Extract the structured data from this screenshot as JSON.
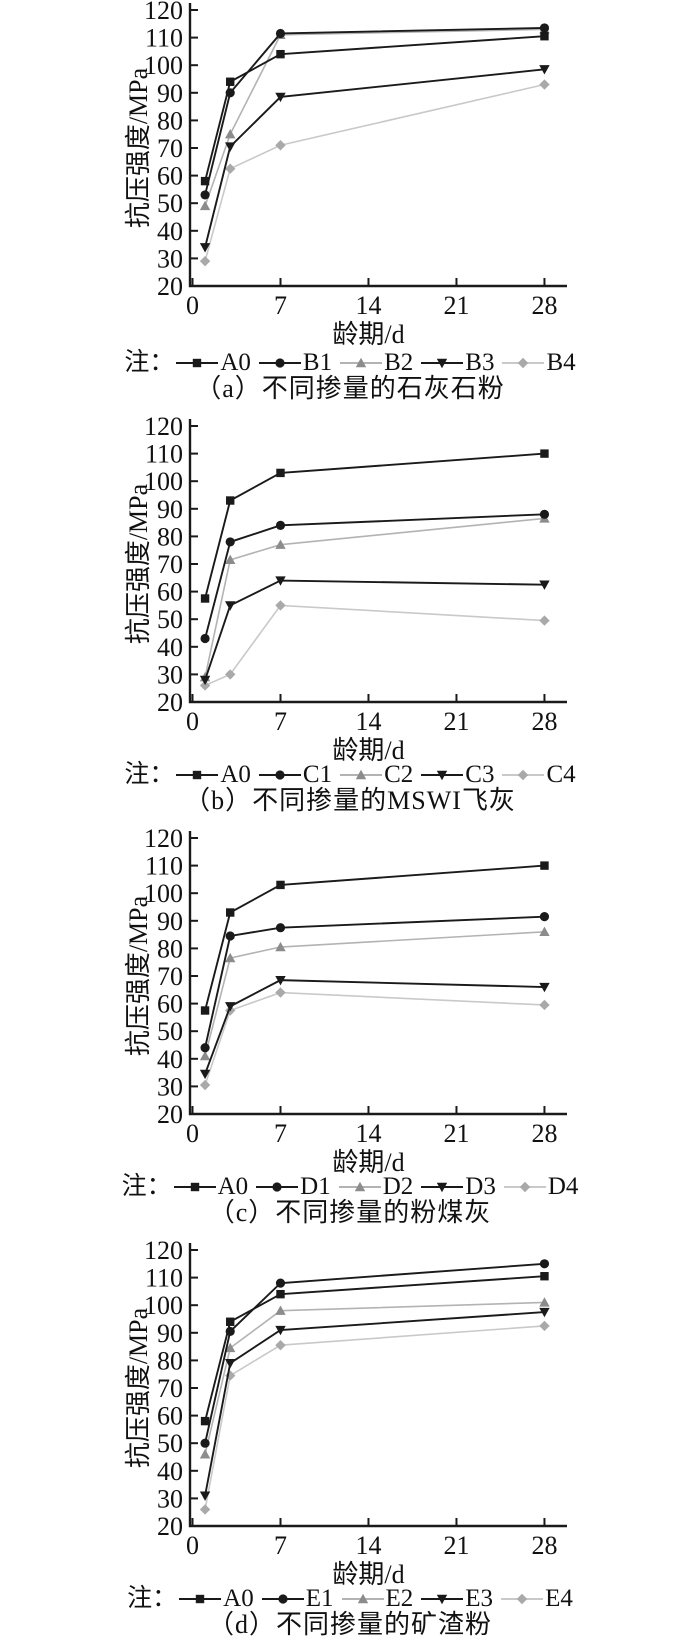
{
  "ui": {
    "legend_prefix": "注："
  },
  "palette": {
    "black": {
      "marker": "#1a1a1a",
      "line": "#1a1a1a"
    },
    "gray": {
      "marker": "#8c8c8c",
      "line": "#b3b3b3"
    },
    "lightgray": {
      "marker": "#a9a9a9",
      "line": "#c9c9c9"
    }
  },
  "chart_data": [
    {
      "type": "line",
      "caption": "（a）不同掺量的石灰石粉",
      "xlabel": "龄期/d",
      "ylabel": "抗压强度/MPa",
      "xticks": [
        0,
        7,
        14,
        21,
        28
      ],
      "xlim": [
        0,
        29.5
      ],
      "ylim": [
        20,
        120
      ],
      "ytick_step": 10,
      "x": [
        1,
        3,
        7,
        28
      ],
      "series": [
        {
          "name": "A0",
          "marker": "square",
          "color": "black",
          "values": [
            58,
            94,
            104,
            110.5
          ]
        },
        {
          "name": "B1",
          "marker": "circle",
          "color": "black",
          "values": [
            53,
            90,
            111.5,
            113.5
          ]
        },
        {
          "name": "B2",
          "marker": "triangle-up",
          "color": "gray",
          "values": [
            49,
            75,
            111,
            113
          ]
        },
        {
          "name": "B3",
          "marker": "triangle-down",
          "color": "black",
          "values": [
            34,
            70.5,
            88.5,
            98.5
          ]
        },
        {
          "name": "B4",
          "marker": "diamond",
          "color": "lightgray",
          "values": [
            29,
            62.5,
            71,
            93
          ]
        }
      ]
    },
    {
      "type": "line",
      "caption": "（b）不同掺量的MSWI飞灰",
      "xlabel": "龄期/d",
      "ylabel": "抗压强度/MPa",
      "xticks": [
        0,
        7,
        14,
        21,
        28
      ],
      "xlim": [
        0,
        29.5
      ],
      "ylim": [
        20,
        120
      ],
      "ytick_step": 10,
      "x": [
        1,
        3,
        7,
        28
      ],
      "series": [
        {
          "name": "A0",
          "marker": "square",
          "color": "black",
          "values": [
            57.5,
            93,
            103,
            110
          ]
        },
        {
          "name": "C1",
          "marker": "circle",
          "color": "black",
          "values": [
            43,
            78,
            84,
            88
          ]
        },
        {
          "name": "C2",
          "marker": "triangle-up",
          "color": "gray",
          "values": [
            29,
            71.5,
            77,
            86.5
          ]
        },
        {
          "name": "C3",
          "marker": "triangle-down",
          "color": "black",
          "values": [
            28,
            55,
            64,
            62.5
          ]
        },
        {
          "name": "C4",
          "marker": "diamond",
          "color": "lightgray",
          "values": [
            26,
            30,
            55,
            49.5
          ]
        }
      ]
    },
    {
      "type": "line",
      "caption": "（c）不同掺量的粉煤灰",
      "xlabel": "龄期/d",
      "ylabel": "抗压强度/MPa",
      "xticks": [
        0,
        7,
        14,
        21,
        28
      ],
      "xlim": [
        0,
        29.5
      ],
      "ylim": [
        20,
        120
      ],
      "ytick_step": 10,
      "x": [
        1,
        3,
        7,
        28
      ],
      "series": [
        {
          "name": "A0",
          "marker": "square",
          "color": "black",
          "values": [
            57.5,
            93,
            103,
            110
          ]
        },
        {
          "name": "D1",
          "marker": "circle",
          "color": "black",
          "values": [
            44,
            84.5,
            87.5,
            91.5
          ]
        },
        {
          "name": "D2",
          "marker": "triangle-up",
          "color": "gray",
          "values": [
            41,
            76.5,
            80.5,
            86
          ]
        },
        {
          "name": "D3",
          "marker": "triangle-down",
          "color": "black",
          "values": [
            34.5,
            59,
            68.5,
            66
          ]
        },
        {
          "name": "D4",
          "marker": "diamond",
          "color": "lightgray",
          "values": [
            30.5,
            57.5,
            64,
            59.5
          ]
        }
      ]
    },
    {
      "type": "line",
      "caption": "（d）不同掺量的矿渣粉",
      "xlabel": "龄期/d",
      "ylabel": "抗压强度/MPa",
      "xticks": [
        0,
        7,
        14,
        21,
        28
      ],
      "xlim": [
        0,
        29.5
      ],
      "ylim": [
        20,
        120
      ],
      "ytick_step": 10,
      "x": [
        1,
        3,
        7,
        28
      ],
      "series": [
        {
          "name": "A0",
          "marker": "square",
          "color": "black",
          "values": [
            58,
            94,
            104,
            110.5
          ]
        },
        {
          "name": "E1",
          "marker": "circle",
          "color": "black",
          "values": [
            50,
            90.5,
            108,
            115
          ]
        },
        {
          "name": "E2",
          "marker": "triangle-up",
          "color": "gray",
          "values": [
            46,
            84.5,
            98,
            101
          ]
        },
        {
          "name": "E3",
          "marker": "triangle-down",
          "color": "black",
          "values": [
            31,
            79,
            91,
            97.5
          ]
        },
        {
          "name": "E4",
          "marker": "diamond",
          "color": "lightgray",
          "values": [
            26,
            74.5,
            85.5,
            92.5
          ]
        }
      ]
    }
  ]
}
